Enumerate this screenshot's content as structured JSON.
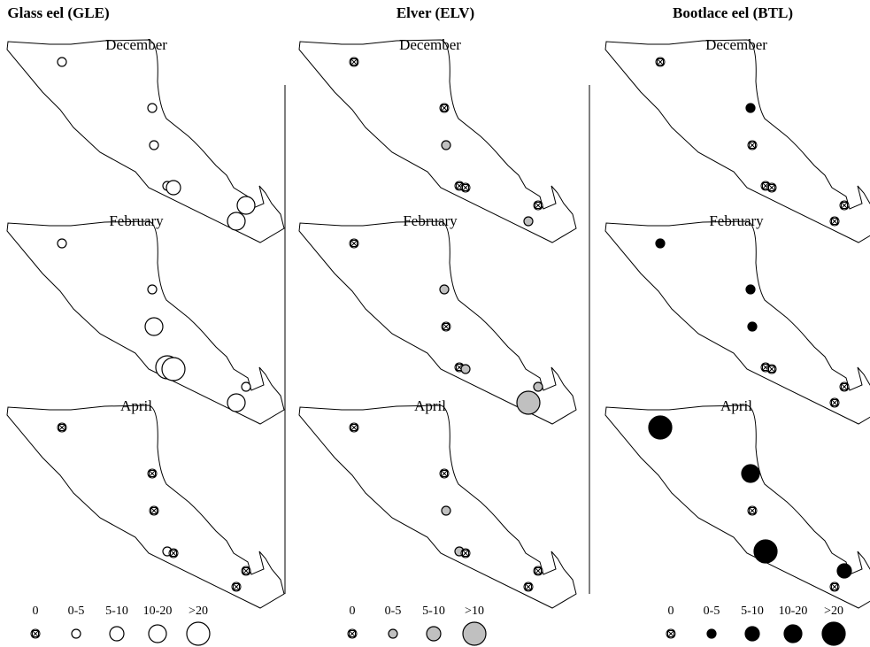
{
  "columns": [
    {
      "title": "Glass eel (GLE)",
      "fill": "#ffffff",
      "legend": [
        "0",
        "0-5",
        "5-10",
        "10-20",
        ">20"
      ],
      "panels": [
        {
          "month": "December",
          "sites": [
            "0-5",
            "0-5",
            "0-5",
            "0-5",
            "5-10",
            "10-20",
            "10-20"
          ]
        },
        {
          "month": "February",
          "sites": [
            "0-5",
            "0-5",
            "10-20",
            ">20",
            ">20",
            "0-5",
            "10-20"
          ]
        },
        {
          "month": "April",
          "sites": [
            "0",
            "0",
            "0",
            "0-5",
            "0",
            "0",
            "0"
          ]
        }
      ]
    },
    {
      "title": "Elver (ELV)",
      "fill": "#c0c0c0",
      "legend": [
        "0",
        "0-5",
        "5-10",
        ">10"
      ],
      "panels": [
        {
          "month": "December",
          "sites": [
            "0",
            "0",
            "0-5",
            "0",
            "0",
            "0",
            "0-5"
          ]
        },
        {
          "month": "February",
          "sites": [
            "0",
            "0-5",
            "0",
            "0",
            "0-5",
            "0-5",
            ">10"
          ]
        },
        {
          "month": "April",
          "sites": [
            "0",
            "0",
            "0-5",
            "0-5",
            "0",
            "0",
            "0"
          ]
        }
      ]
    },
    {
      "title": "Bootlace eel (BTL)",
      "fill": "#000000",
      "legend": [
        "0",
        "0-5",
        "5-10",
        "10-20",
        ">20"
      ],
      "panels": [
        {
          "month": "December",
          "sites": [
            "0",
            "0-5",
            "0",
            "0",
            "0",
            "0",
            "0"
          ]
        },
        {
          "month": "February",
          "sites": [
            "0-5",
            "0-5",
            "0-5",
            "0",
            "0",
            "0",
            "0"
          ]
        },
        {
          "month": "April",
          "sites": [
            ">20",
            "10-20",
            "0",
            ">20",
            "0-5",
            "5-10",
            "0"
          ]
        }
      ]
    }
  ]
}
